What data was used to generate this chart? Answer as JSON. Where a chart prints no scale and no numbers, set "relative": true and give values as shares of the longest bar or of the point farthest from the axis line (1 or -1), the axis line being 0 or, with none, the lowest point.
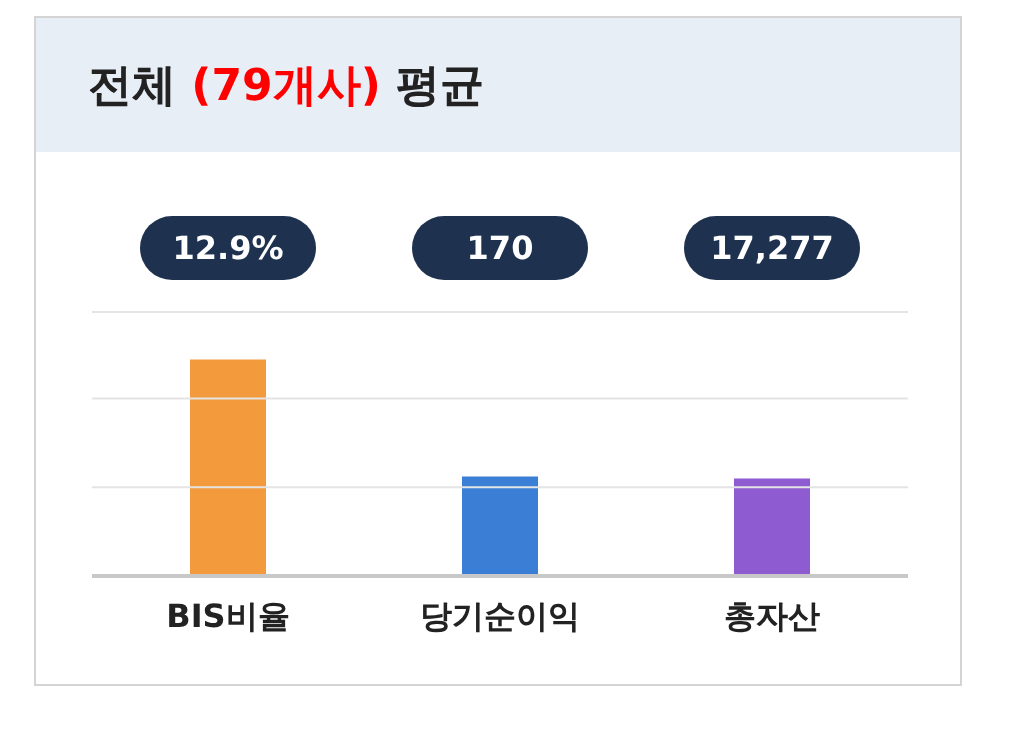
{
  "chart_data": {
    "type": "bar",
    "title": "전체 (79개사) 평균",
    "relative": true,
    "categories": [
      "BIS비율",
      "당기순이익",
      "총자산"
    ],
    "values": [
      1,
      0.46,
      0.45
    ],
    "colors": [
      "#f39a3c",
      "#3a7fd5",
      "#8e5bd1"
    ],
    "annotations": [
      "12.9%",
      "170",
      "17,277"
    ],
    "ref_lines": [
      {
        "axis": "y",
        "value": 0.41,
        "color": "#e4e4e4"
      },
      {
        "axis": "y",
        "value": 0.82,
        "color": "#e4e4e4"
      },
      {
        "axis": "y",
        "value": 1.22,
        "color": "#e4e4e4"
      }
    ]
  }
}
